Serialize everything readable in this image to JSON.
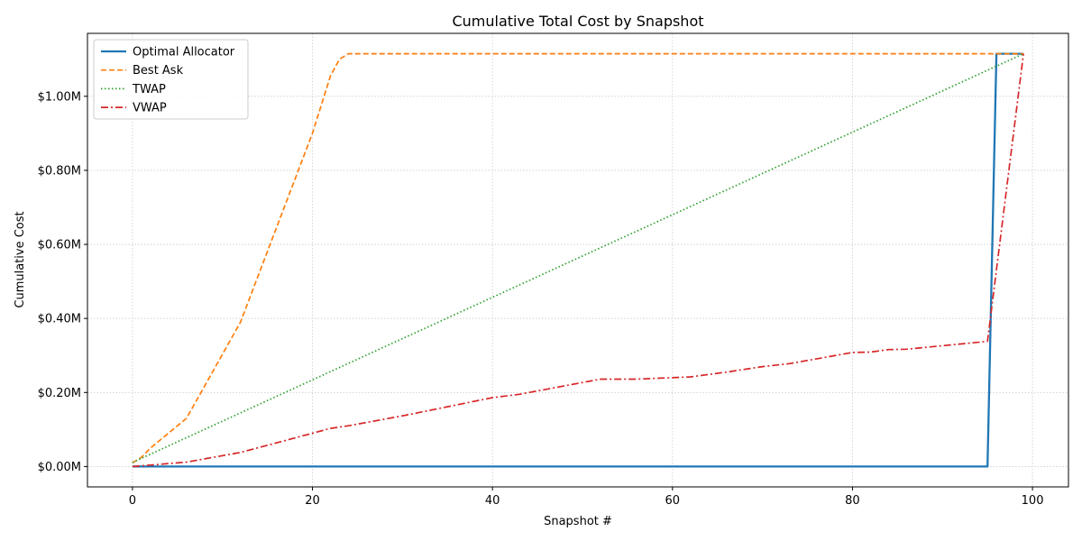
{
  "chart_data": {
    "type": "line",
    "title": "Cumulative Total Cost by Snapshot",
    "xlabel": "Snapshot #",
    "ylabel": "Cumulative Cost",
    "xlim": [
      -5,
      104
    ],
    "ylim": [
      -55000,
      1170000
    ],
    "xticks": [
      0,
      20,
      40,
      60,
      80,
      100
    ],
    "xtick_labels": [
      "0",
      "20",
      "40",
      "60",
      "80",
      "100"
    ],
    "yticks": [
      0,
      200000,
      400000,
      600000,
      800000,
      1000000
    ],
    "ytick_labels": [
      "$0.00M",
      "$0.20M",
      "$0.40M",
      "$0.60M",
      "$0.80M",
      "$1.00M"
    ],
    "grid": true,
    "legend_position": "top-left",
    "series": [
      {
        "name": "Optimal Allocator",
        "color": "#1f77b4",
        "style": "solid",
        "points": [
          [
            0,
            0
          ],
          [
            95,
            0
          ],
          [
            96,
            1115000
          ],
          [
            99,
            1115000
          ]
        ]
      },
      {
        "name": "Best Ask",
        "color": "#ff7f0e",
        "style": "dashed",
        "points": [
          [
            0,
            10000
          ],
          [
            1,
            25000
          ],
          [
            2,
            50000
          ],
          [
            6,
            130000
          ],
          [
            12,
            390000
          ],
          [
            20,
            900000
          ],
          [
            22,
            1055000
          ],
          [
            23,
            1100000
          ],
          [
            24,
            1115000
          ],
          [
            99,
            1115000
          ]
        ]
      },
      {
        "name": "TWAP",
        "color": "#2ca02c",
        "style": "dotted",
        "points": [
          [
            0,
            11000
          ],
          [
            99,
            1115000
          ]
        ]
      },
      {
        "name": "VWAP",
        "color": "#d62728",
        "style": "dashdot",
        "points": [
          [
            0,
            0
          ],
          [
            2,
            4000
          ],
          [
            6,
            12000
          ],
          [
            12,
            38000
          ],
          [
            20,
            90000
          ],
          [
            22,
            103000
          ],
          [
            24,
            110000
          ],
          [
            30,
            137000
          ],
          [
            40,
            186000
          ],
          [
            43,
            195000
          ],
          [
            52,
            236000
          ],
          [
            56,
            236000
          ],
          [
            62,
            242000
          ],
          [
            66,
            255000
          ],
          [
            70,
            270000
          ],
          [
            73,
            278000
          ],
          [
            80,
            308000
          ],
          [
            82,
            309000
          ],
          [
            84,
            316000
          ],
          [
            86,
            317000
          ],
          [
            95,
            338000
          ],
          [
            99,
            1115000
          ]
        ]
      }
    ]
  }
}
